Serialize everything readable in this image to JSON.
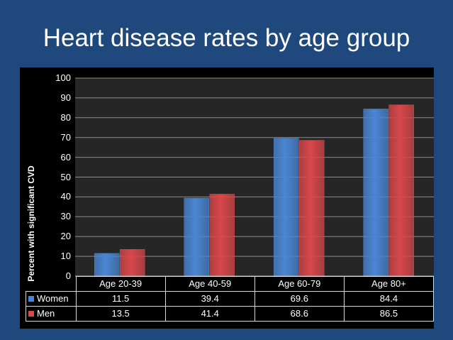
{
  "title": "Heart disease rates by age group",
  "chart_data": {
    "type": "bar",
    "title": "Heart disease rates by age group",
    "xlabel": "",
    "ylabel": "Percent with significant CVD",
    "categories": [
      "Age 20-39",
      "Age 40-59",
      "Age 60-79",
      "Age 80+"
    ],
    "series": [
      {
        "name": "Women",
        "values": [
          11.5,
          39.4,
          69.6,
          84.4
        ],
        "color": "#4a86d4"
      },
      {
        "name": "Men",
        "values": [
          13.5,
          41.4,
          68.6,
          86.5
        ],
        "color": "#d8474a"
      }
    ],
    "ylim": [
      0,
      100
    ],
    "yticks": [
      "0",
      "10",
      "20",
      "30",
      "40",
      "50",
      "60",
      "70",
      "80",
      "90",
      "100"
    ],
    "grid": true,
    "legend": "data table",
    "table": {
      "rows": [
        {
          "label": "Women",
          "values": [
            "11.5",
            "39.4",
            "69.6",
            "84.4"
          ]
        },
        {
          "label": "Men",
          "values": [
            "13.5",
            "41.4",
            "68.6",
            "86.5"
          ]
        }
      ]
    }
  }
}
